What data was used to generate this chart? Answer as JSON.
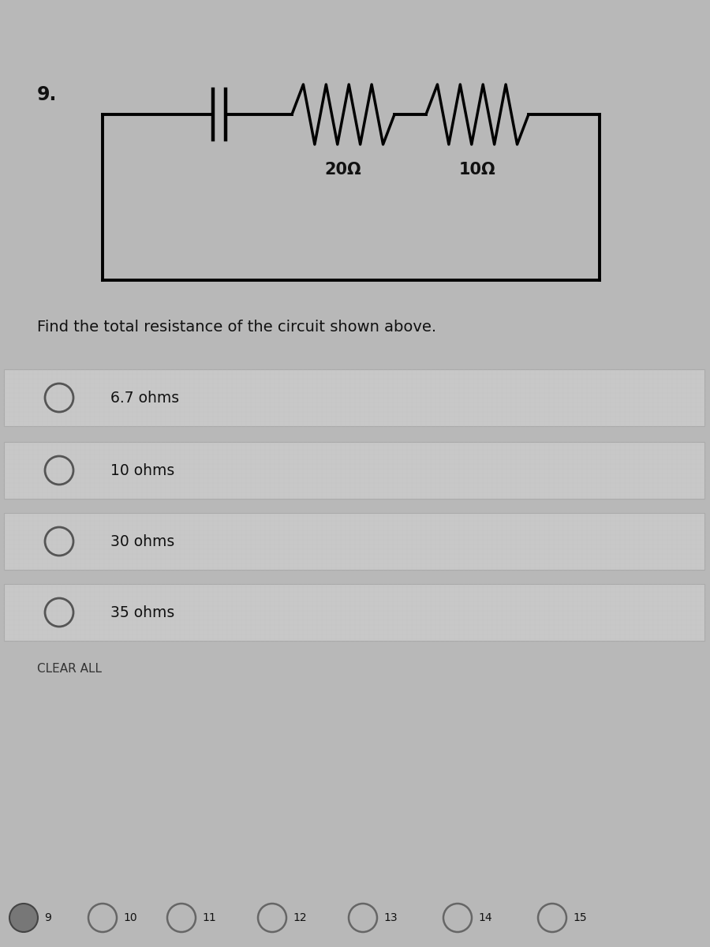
{
  "question_number": "9.",
  "question_text": "Find the total resistance of the circuit shown above.",
  "choices": [
    "6.7 ohms",
    "10 ohms",
    "30 ohms",
    "35 ohms"
  ],
  "clear_all": "CLEAR ALL",
  "nav_numbers": [
    "9",
    "10",
    "11",
    "12",
    "13",
    "14",
    "15"
  ],
  "resistor1_label": "20Ω",
  "resistor2_label": "10Ω",
  "bg_color": "#b8b8b8",
  "box_color": "#000000",
  "text_color": "#111111",
  "choice_row_color": "#c0c0c0",
  "choice_border_color": "#999999"
}
